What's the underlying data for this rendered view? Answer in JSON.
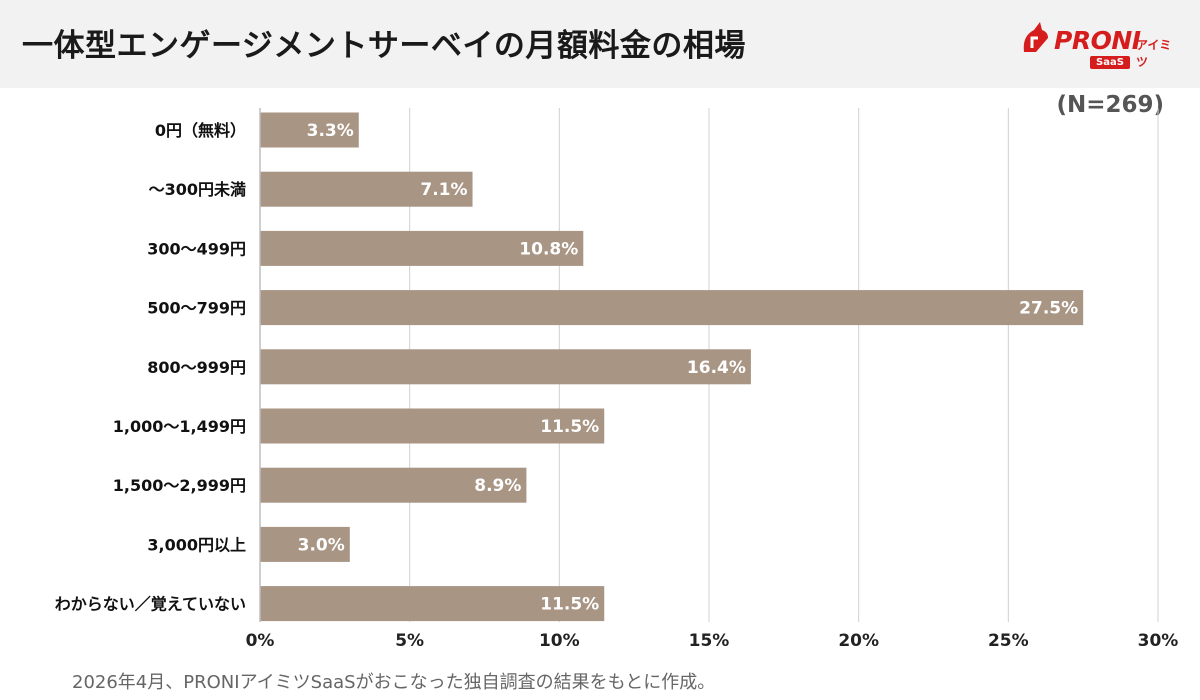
{
  "header": {
    "title": "一体型エンゲージメントサーベイの月額料金の相場",
    "logo_text": "PRONI",
    "logo_sub": "アイミツ",
    "logo_badge": "SaaS"
  },
  "sample_size": "(N=269)",
  "footnote": "2026年4月、PRONIアイミツSaaSがおこなった独自調査の結果をもとに作成。",
  "chart_data": {
    "type": "bar",
    "orientation": "horizontal",
    "categories": [
      "0円（無料）",
      "～300円未満",
      "300～499円",
      "500～799円",
      "800～999円",
      "1,000～1,499円",
      "1,500～2,999円",
      "3,000円以上",
      "わからない／覚えていない"
    ],
    "values": [
      3.3,
      7.1,
      10.8,
      27.5,
      16.4,
      11.5,
      8.9,
      3.0,
      11.5
    ],
    "value_labels": [
      "3.3%",
      "7.1%",
      "10.8%",
      "27.5%",
      "16.4%",
      "11.5%",
      "8.9%",
      "3.0%",
      "11.5%"
    ],
    "xlim": [
      0,
      30
    ],
    "xticks": [
      0,
      5,
      10,
      15,
      20,
      25,
      30
    ],
    "xtick_labels": [
      "0%",
      "5%",
      "10%",
      "15%",
      "20%",
      "25%",
      "30%"
    ],
    "bar_color": "#a89584",
    "grid": true,
    "title": "",
    "xlabel": "",
    "ylabel": ""
  }
}
